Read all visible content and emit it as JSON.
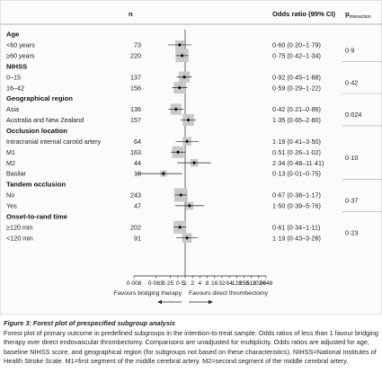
{
  "headers": {
    "n": "n",
    "or": "Odds ratio (95% CI)",
    "p_main": "p",
    "p_sub": "interaction"
  },
  "groups": [
    {
      "label": "Age",
      "p": "0·9",
      "rows": [
        {
          "label": "<60 years",
          "n": "73",
          "or_text": "0·60 (0·20–1·79)"
        },
        {
          "label": "≥60 years",
          "n": "220",
          "or_text": "0·75 (0·42–1·34)"
        }
      ]
    },
    {
      "label": "NIHSS",
      "p": "0·42",
      "rows": [
        {
          "label": "0–15",
          "n": "137",
          "or_text": "0·92 (0·45–1·88)"
        },
        {
          "label": "16–42",
          "n": "156",
          "or_text": "0·59 (0·29–1·22)"
        }
      ]
    },
    {
      "label": "Geographical region",
      "p": "0·024",
      "rows": [
        {
          "label": "Asia",
          "n": "136",
          "or_text": "0·42 (0·21–0·86)"
        },
        {
          "label": "Australia and New Zealand",
          "n": "157",
          "or_text": "1·35 (0·65–2·80)"
        }
      ]
    },
    {
      "label": "Occlusion location",
      "p": "0·10",
      "rows": [
        {
          "label": "Intracranial internal carotid artery",
          "n": "64",
          "or_text": "1·19 (0·41–3·50)"
        },
        {
          "label": "M1",
          "n": "163",
          "or_text": "0·51 (0·26–1·02)"
        },
        {
          "label": "M2",
          "n": "44",
          "or_text": "2·34 (0·48–11·41)"
        },
        {
          "label": "Basilar",
          "n": "18",
          "or_text": "0·13 (0·01–0·75)"
        }
      ]
    },
    {
      "label": "Tandem occlusion",
      "p": "0·37",
      "rows": [
        {
          "label": "No",
          "n": "243",
          "or_text": "0·67 (0·38–1·17)"
        },
        {
          "label": "Yes",
          "n": "47",
          "or_text": "1·50 (0·39–5·76)"
        }
      ]
    },
    {
      "label": "Onset-to-rand time",
      "p": "0·23",
      "rows": [
        {
          "label": "≥120 min",
          "n": "202",
          "or_text": "0·61 (0·34–1·11)"
        },
        {
          "label": "<120 min",
          "n": "91",
          "or_text": "1·19 (0·43–3·28)"
        }
      ]
    }
  ],
  "chart_data": {
    "type": "forest",
    "x_scale": "log2",
    "xlim": [
      0.008,
      2048
    ],
    "reference_line": 1,
    "xticks": [
      0.008,
      0.063,
      0.25,
      0.5,
      1,
      2,
      4,
      8,
      16,
      32,
      64,
      128,
      256,
      512,
      1024,
      2048
    ],
    "xtick_labels": [
      "0·008",
      "0·063",
      "0·25",
      "0·5",
      "1",
      "2",
      "4",
      "8",
      "16",
      "32",
      "64",
      "128",
      "256",
      "512",
      "1024",
      "2048"
    ],
    "favours_left": "Favours bridging therapy",
    "favours_right": "Favours direct thrombectomy",
    "points": [
      {
        "label": "<60 years",
        "or": 0.6,
        "lo": 0.2,
        "hi": 1.79,
        "n": 73
      },
      {
        "label": "≥60 years",
        "or": 0.75,
        "lo": 0.42,
        "hi": 1.34,
        "n": 220
      },
      {
        "label": "0–15",
        "or": 0.92,
        "lo": 0.45,
        "hi": 1.88,
        "n": 137
      },
      {
        "label": "16–42",
        "or": 0.59,
        "lo": 0.29,
        "hi": 1.22,
        "n": 156
      },
      {
        "label": "Asia",
        "or": 0.42,
        "lo": 0.21,
        "hi": 0.86,
        "n": 136
      },
      {
        "label": "Australia and New Zealand",
        "or": 1.35,
        "lo": 0.65,
        "hi": 2.8,
        "n": 157
      },
      {
        "label": "Intracranial internal carotid artery",
        "or": 1.19,
        "lo": 0.41,
        "hi": 3.5,
        "n": 64
      },
      {
        "label": "M1",
        "or": 0.51,
        "lo": 0.26,
        "hi": 1.02,
        "n": 163
      },
      {
        "label": "M2",
        "or": 2.34,
        "lo": 0.48,
        "hi": 11.41,
        "n": 44
      },
      {
        "label": "Basilar",
        "or": 0.13,
        "lo": 0.01,
        "hi": 0.75,
        "n": 18
      },
      {
        "label": "No",
        "or": 0.67,
        "lo": 0.38,
        "hi": 1.17,
        "n": 243
      },
      {
        "label": "Yes",
        "or": 1.5,
        "lo": 0.39,
        "hi": 5.76,
        "n": 47
      },
      {
        "label": "≥120 min",
        "or": 0.61,
        "lo": 0.34,
        "hi": 1.11,
        "n": 202
      },
      {
        "label": "<120 min",
        "or": 1.19,
        "lo": 0.43,
        "hi": 3.28,
        "n": 91
      }
    ],
    "colors": {
      "box": "#c9c9c9",
      "marker": "#111111",
      "line": "#222222"
    }
  },
  "caption": {
    "title": "Figure 3: Forest plot of prespecified subgroup analysis",
    "text": "Forest plot of primary outcome in predefined subgroups in the intention-to-treat sample. Odds ratios of less than 1 favour bridging therapy over direct endovascular thrombectomy. Comparisons are unadjusted for multiplicity. Odds ratios are adjusted for age, baseline NIHSS score, and geographical region (for subgroups not based on these characteristics). NIHSS=National Institutes of Health Stroke Scale. M1=first segment of the middle cerebral artery. M2=second segment of the middle cerebral artery."
  }
}
